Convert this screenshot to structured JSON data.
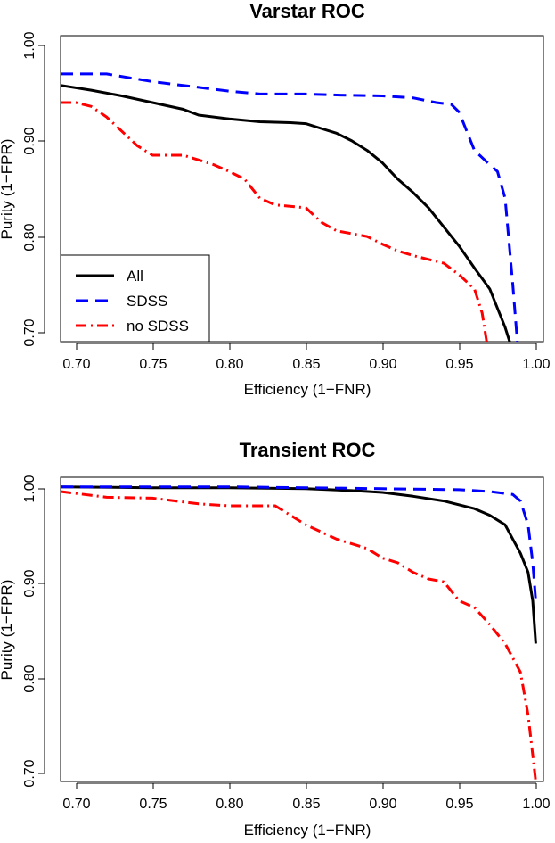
{
  "chart_data": [
    {
      "type": "line",
      "title": "Varstar ROC",
      "xlabel": "Efficiency (1−FNR)",
      "ylabel": "Purity (1−FPR)",
      "xlim": [
        0.69,
        1.005
      ],
      "ylim": [
        0.69,
        1.01
      ],
      "xticks": [
        0.7,
        0.75,
        0.8,
        0.85,
        0.9,
        0.95,
        1.0
      ],
      "xtick_labels": [
        "0.70",
        "0.75",
        "0.80",
        "0.85",
        "0.90",
        "0.95",
        "1.00"
      ],
      "yticks": [
        0.7,
        0.8,
        0.9,
        1.0
      ],
      "ytick_labels": [
        "0.70",
        "0.80",
        "0.90",
        "1.00"
      ],
      "legend": {
        "position": "bottom-left",
        "entries": [
          "All",
          "SDSS",
          "no SDSS"
        ]
      },
      "series": [
        {
          "name": "All",
          "color": "#000000",
          "dash": "solid",
          "x": [
            0.69,
            0.71,
            0.73,
            0.75,
            0.77,
            0.78,
            0.8,
            0.82,
            0.84,
            0.85,
            0.86,
            0.87,
            0.88,
            0.89,
            0.9,
            0.91,
            0.92,
            0.93,
            0.94,
            0.95,
            0.96,
            0.97,
            0.975,
            0.98,
            0.983
          ],
          "y": [
            0.958,
            0.953,
            0.947,
            0.94,
            0.933,
            0.927,
            0.923,
            0.92,
            0.919,
            0.918,
            0.913,
            0.908,
            0.9,
            0.89,
            0.877,
            0.86,
            0.846,
            0.83,
            0.81,
            0.79,
            0.767,
            0.745,
            0.725,
            0.705,
            0.69
          ]
        },
        {
          "name": "SDSS",
          "color": "#0000ff",
          "dash": "dashed",
          "x": [
            0.69,
            0.7,
            0.72,
            0.75,
            0.78,
            0.8,
            0.82,
            0.85,
            0.87,
            0.9,
            0.92,
            0.935,
            0.945,
            0.95,
            0.955,
            0.96,
            0.97,
            0.975,
            0.98,
            0.985,
            0.988
          ],
          "y": [
            0.97,
            0.97,
            0.97,
            0.962,
            0.956,
            0.952,
            0.949,
            0.949,
            0.948,
            0.947,
            0.945,
            0.94,
            0.938,
            0.93,
            0.91,
            0.89,
            0.875,
            0.868,
            0.84,
            0.75,
            0.69
          ]
        },
        {
          "name": "no SDSS",
          "color": "#ff0000",
          "dash": "dotdash",
          "x": [
            0.69,
            0.7,
            0.71,
            0.72,
            0.73,
            0.74,
            0.75,
            0.77,
            0.78,
            0.79,
            0.8,
            0.81,
            0.82,
            0.83,
            0.85,
            0.86,
            0.87,
            0.88,
            0.89,
            0.9,
            0.91,
            0.92,
            0.93,
            0.94,
            0.95,
            0.96,
            0.965,
            0.968
          ],
          "y": [
            0.94,
            0.94,
            0.936,
            0.925,
            0.91,
            0.895,
            0.885,
            0.885,
            0.88,
            0.875,
            0.868,
            0.86,
            0.84,
            0.833,
            0.83,
            0.815,
            0.806,
            0.803,
            0.8,
            0.792,
            0.785,
            0.78,
            0.776,
            0.772,
            0.76,
            0.745,
            0.72,
            0.69
          ]
        }
      ]
    },
    {
      "type": "line",
      "title": "Transient ROC",
      "xlabel": "Efficiency (1−FNR)",
      "ylabel": "Purity (1−FPR)",
      "xlim": [
        0.69,
        1.005
      ],
      "ylim": [
        0.69,
        1.01
      ],
      "xticks": [
        0.7,
        0.75,
        0.8,
        0.85,
        0.9,
        0.95,
        1.0
      ],
      "xtick_labels": [
        "0.70",
        "0.75",
        "0.80",
        "0.85",
        "0.90",
        "0.95",
        "1.00"
      ],
      "yticks": [
        0.7,
        0.8,
        0.9,
        1.0
      ],
      "ytick_labels": [
        "0.70",
        "0.80",
        "0.90",
        "1.00"
      ],
      "series": [
        {
          "name": "All",
          "color": "#000000",
          "dash": "solid",
          "x": [
            0.69,
            0.75,
            0.8,
            0.85,
            0.88,
            0.9,
            0.92,
            0.94,
            0.96,
            0.97,
            0.98,
            0.985,
            0.99,
            0.995,
            0.998,
            1.0
          ],
          "y": [
            1.0,
            0.999,
            0.999,
            0.998,
            0.996,
            0.994,
            0.99,
            0.985,
            0.977,
            0.97,
            0.96,
            0.945,
            0.93,
            0.91,
            0.88,
            0.835
          ]
        },
        {
          "name": "SDSS",
          "color": "#0000ff",
          "dash": "dashed",
          "x": [
            0.69,
            0.8,
            0.85,
            0.9,
            0.95,
            0.97,
            0.985,
            0.99,
            0.995,
            0.998,
            1.0
          ],
          "y": [
            1.0,
            1.0,
            0.999,
            0.998,
            0.997,
            0.995,
            0.992,
            0.985,
            0.96,
            0.92,
            0.88
          ]
        },
        {
          "name": "no SDSS",
          "color": "#ff0000",
          "dash": "dotdash",
          "x": [
            0.69,
            0.7,
            0.72,
            0.75,
            0.78,
            0.8,
            0.83,
            0.85,
            0.87,
            0.89,
            0.9,
            0.91,
            0.92,
            0.93,
            0.94,
            0.95,
            0.96,
            0.97,
            0.98,
            0.99,
            0.995,
            1.0
          ],
          "y": [
            0.995,
            0.993,
            0.989,
            0.988,
            0.982,
            0.98,
            0.98,
            0.96,
            0.945,
            0.935,
            0.925,
            0.92,
            0.91,
            0.903,
            0.9,
            0.88,
            0.873,
            0.855,
            0.835,
            0.805,
            0.76,
            0.69
          ]
        }
      ]
    }
  ]
}
